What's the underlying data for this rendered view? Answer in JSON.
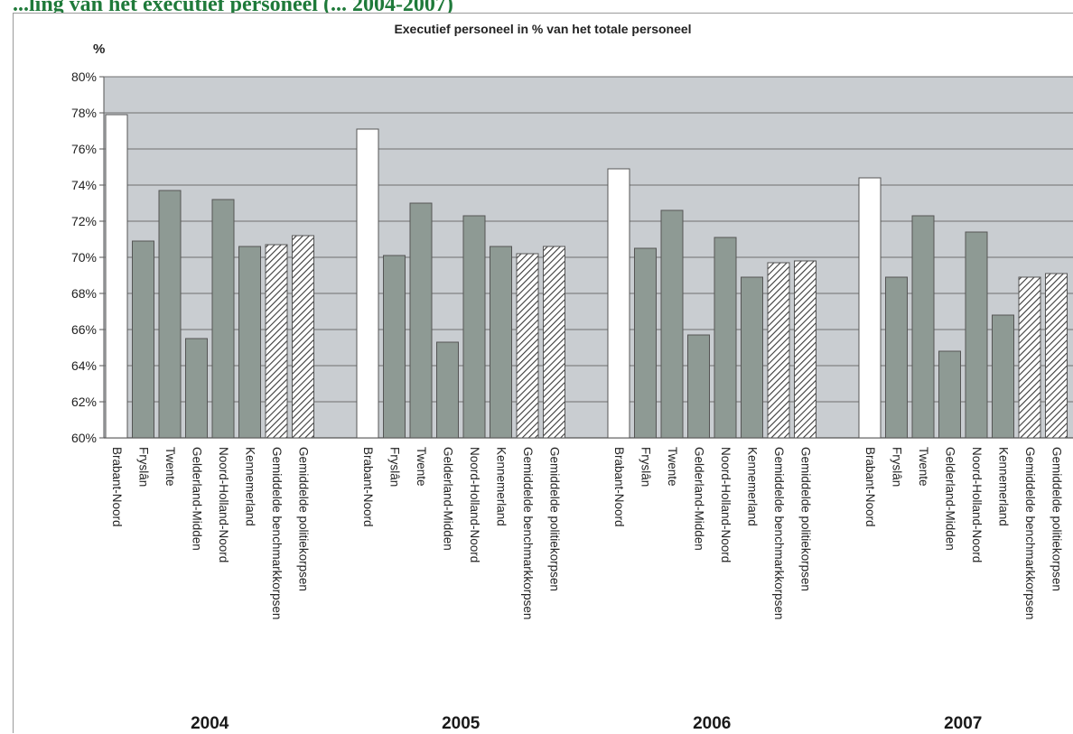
{
  "page": {
    "heading": "...ling van het executief personeel (... 2004-2007)"
  },
  "chart_data": {
    "type": "bar",
    "title": "Executief personeel in % van het totale personeel",
    "ylabel": "%",
    "xlabel": "",
    "ylim": [
      60,
      80
    ],
    "ytick_step": 2,
    "ytick_suffix": "%",
    "grid": true,
    "legend": "none",
    "categories": [
      "Brabant-Noord",
      "Fryslân",
      "Twente",
      "Gelderland-Midden",
      "Noord-Holland-Noord",
      "Kennemerland",
      "Gemiddelde benchmarkkorpsen",
      "Gemiddelde politiekorpsen"
    ],
    "category_styles": [
      "highlight",
      "solid",
      "solid",
      "solid",
      "solid",
      "solid",
      "hatched",
      "hatched"
    ],
    "groups": [
      {
        "year": "2004",
        "values": [
          77.9,
          70.9,
          73.7,
          65.5,
          73.2,
          70.6,
          70.7,
          71.2
        ]
      },
      {
        "year": "2005",
        "values": [
          77.1,
          70.1,
          73.0,
          65.3,
          72.3,
          70.6,
          70.2,
          70.6
        ]
      },
      {
        "year": "2006",
        "values": [
          74.9,
          70.5,
          72.6,
          65.7,
          71.1,
          68.9,
          69.7,
          69.8
        ]
      },
      {
        "year": "2007",
        "values": [
          74.4,
          68.9,
          72.3,
          64.8,
          71.4,
          66.8,
          68.9,
          69.1
        ]
      }
    ],
    "colors": {
      "plot_bg": "#c9cdd1",
      "bar_fill": "#8e9a94",
      "highlight_fill": "#ffffff",
      "hatch_line": "#3a3a3a",
      "grid": "#6f6f6f",
      "border": "#555555",
      "year_label": "#1a1a1a"
    }
  }
}
